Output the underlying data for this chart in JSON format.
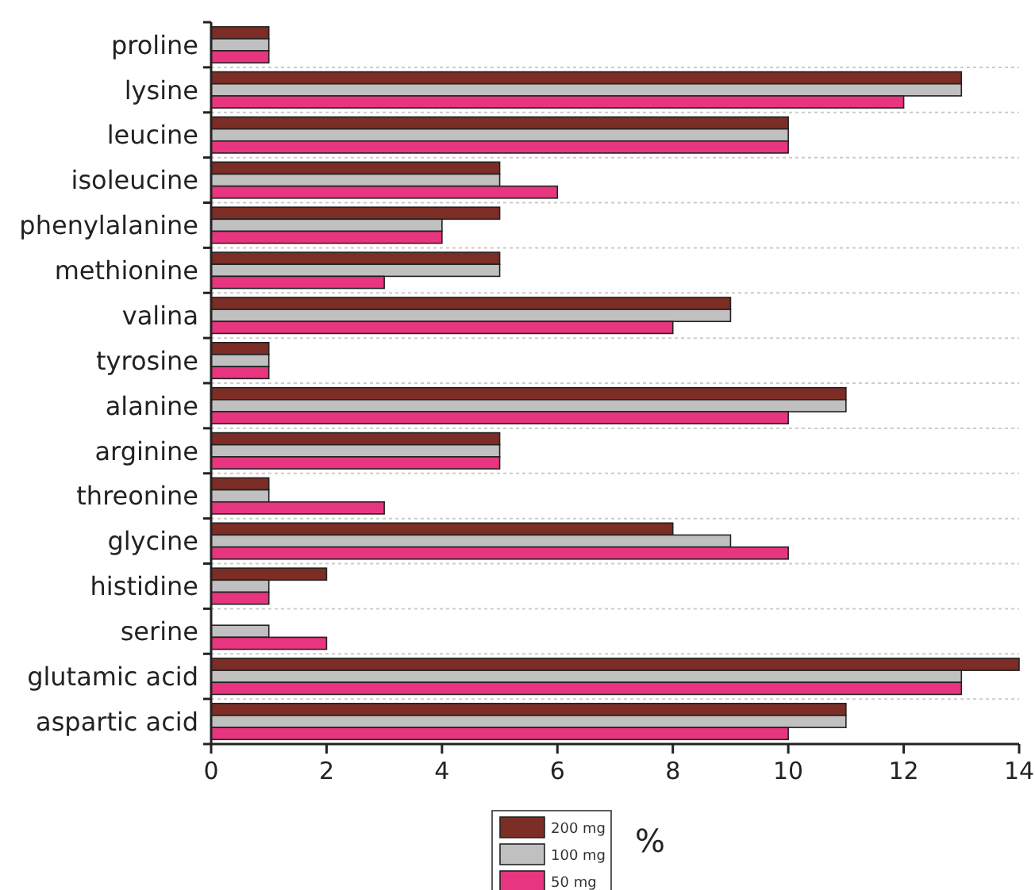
{
  "chart_data": {
    "type": "bar",
    "orientation": "horizontal",
    "xlabel": "%",
    "categories": [
      "proline",
      "lysine",
      "leucine",
      "isoleucine",
      "phenylalanine",
      "methionine",
      "valina",
      "tyrosine",
      "alanine",
      "arginine",
      "threonine",
      "glycine",
      "histidine",
      "serine",
      "glutamic acid",
      "aspartic acid"
    ],
    "series": [
      {
        "name": "200 mg",
        "color": "#7b2d26",
        "values": [
          1,
          13,
          10,
          5,
          5,
          5,
          9,
          1,
          11,
          5,
          1,
          8,
          2,
          0,
          14,
          11
        ]
      },
      {
        "name": "100 mg",
        "color": "#c0c0c0",
        "values": [
          1,
          13,
          10,
          5,
          4,
          5,
          9,
          1,
          11,
          5,
          1,
          9,
          1,
          1,
          13,
          11
        ]
      },
      {
        "name": "50 mg",
        "color": "#e8357f",
        "values": [
          1,
          12,
          10,
          6,
          4,
          3,
          8,
          1,
          10,
          5,
          3,
          10,
          1,
          2,
          13,
          10
        ]
      }
    ],
    "xlim": [
      0,
      14
    ],
    "xticks": [
      0,
      2,
      4,
      6,
      8,
      10,
      12,
      14
    ],
    "grid": "y",
    "legend": "bottom"
  }
}
